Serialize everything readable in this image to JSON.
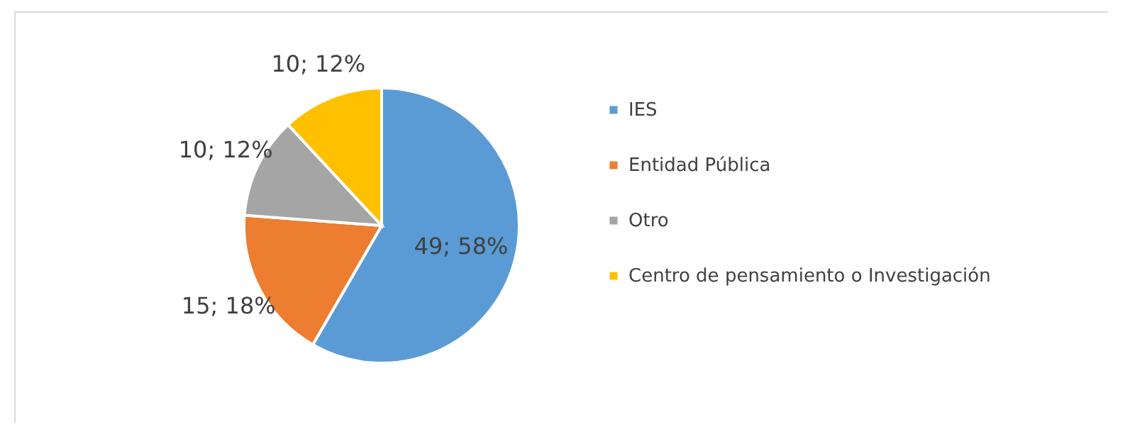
{
  "chart_data": {
    "type": "pie",
    "categories": [
      "IES",
      "Entidad Pública",
      "Otro",
      "Centro de pensamiento o Investigación"
    ],
    "values": [
      49,
      15,
      10,
      10
    ],
    "colors": [
      "#5b9bd5",
      "#ed7d31",
      "#a5a5a5",
      "#ffc000"
    ],
    "value_labels": [
      "49; 58%",
      "15; 18%",
      "10; 12%",
      "10; 12%"
    ],
    "legend": "right"
  }
}
